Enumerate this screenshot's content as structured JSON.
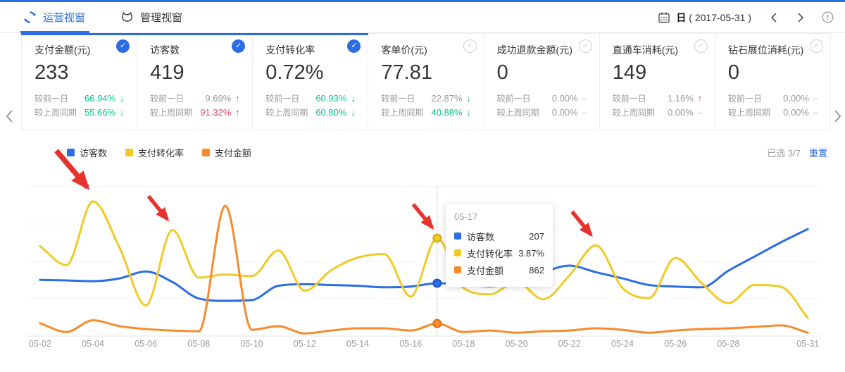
{
  "colors": {
    "accent": "#2b6de4",
    "green": "#0abf8f",
    "red": "#f0466e",
    "gray": "#9b9b9b",
    "arrow_red": "#e8322d"
  },
  "icons": {
    "check": "✓",
    "up": "↑",
    "down": "↓",
    "flat": "–"
  },
  "header": {
    "tabs": [
      {
        "label": "运营视窗"
      },
      {
        "label": "管理视窗"
      }
    ],
    "date_mode": "日",
    "date_range": "( 2017-05-31 )"
  },
  "cards": [
    {
      "title": "支付金额(元)",
      "value": "233",
      "selected": true,
      "rows": [
        {
          "label": "较前一日",
          "value": "66.94%",
          "dir": "down",
          "value_color": "green"
        },
        {
          "label": "较上周同期",
          "value": "55.66%",
          "dir": "down",
          "value_color": "green"
        }
      ]
    },
    {
      "title": "访客数",
      "value": "419",
      "selected": true,
      "rows": [
        {
          "label": "较前一日",
          "value": "9.69%",
          "dir": "up",
          "value_color": "gray"
        },
        {
          "label": "较上周同期",
          "value": "91.32%",
          "dir": "up",
          "value_color": "red"
        }
      ]
    },
    {
      "title": "支付转化率",
      "value": "0.72%",
      "selected": true,
      "rows": [
        {
          "label": "较前一日",
          "value": "60.93%",
          "dir": "down",
          "value_color": "green"
        },
        {
          "label": "较上周同期",
          "value": "60.80%",
          "dir": "down",
          "value_color": "green"
        }
      ]
    },
    {
      "title": "客单价(元)",
      "value": "77.81",
      "selected": false,
      "rows": [
        {
          "label": "较前一日",
          "value": "22.87%",
          "dir": "down",
          "value_color": "gray"
        },
        {
          "label": "较上周同期",
          "value": "40.88%",
          "dir": "down",
          "value_color": "green"
        }
      ]
    },
    {
      "title": "成功退款金额(元)",
      "value": "0",
      "selected": false,
      "rows": [
        {
          "label": "较前一日",
          "value": "0.00%",
          "dir": "flat",
          "value_color": "gray"
        },
        {
          "label": "较上周同期",
          "value": "0.00%",
          "dir": "flat",
          "value_color": "gray"
        }
      ]
    },
    {
      "title": "直通车消耗(元)",
      "value": "149",
      "selected": false,
      "rows": [
        {
          "label": "较前一日",
          "value": "1.16%",
          "dir": "up",
          "value_color": "gray"
        },
        {
          "label": "较上周同期",
          "value": "0.00%",
          "dir": "flat",
          "value_color": "gray"
        }
      ]
    },
    {
      "title": "钻石展位消耗(元)",
      "value": "0",
      "selected": false,
      "rows": [
        {
          "label": "较前一日",
          "value": "0.00%",
          "dir": "flat",
          "value_color": "gray"
        },
        {
          "label": "较上周同期",
          "value": "0.00%",
          "dir": "flat",
          "value_color": "gray"
        }
      ]
    }
  ],
  "legend": {
    "selected_text": "已选 3/7",
    "reset_label": "重置"
  },
  "chart_data": {
    "type": "line",
    "x": [
      "05-02",
      "05-03",
      "05-04",
      "05-05",
      "05-06",
      "05-07",
      "05-08",
      "05-09",
      "05-10",
      "05-11",
      "05-12",
      "05-13",
      "05-14",
      "05-15",
      "05-16",
      "05-17",
      "05-18",
      "05-19",
      "05-20",
      "05-21",
      "05-22",
      "05-23",
      "05-24",
      "05-25",
      "05-26",
      "05-27",
      "05-28",
      "05-29",
      "05-30",
      "05-31"
    ],
    "x_tick_labels": [
      "05-02",
      "05-04",
      "05-06",
      "05-08",
      "05-10",
      "05-12",
      "05-14",
      "05-16",
      "05-18",
      "05-20",
      "05-22",
      "05-24",
      "05-26",
      "05-28",
      "05-31"
    ],
    "grid": "horizontal-only",
    "y_axis_labels_visible": false,
    "legend_position": "top-left",
    "series": [
      {
        "id": "visitors",
        "name": "访客数",
        "color": "#2b6de4",
        "dot_stroke": "#1d57c8",
        "axis_max": 585,
        "values": [
          220,
          218,
          215,
          226,
          253,
          212,
          147,
          138,
          141,
          197,
          203,
          200,
          197,
          191,
          194,
          207,
          203,
          195,
          218,
          250,
          276,
          250,
          226,
          200,
          194,
          191,
          256,
          312,
          368,
          419
        ]
      },
      {
        "id": "conversion-rate",
        "name": "支付转化率",
        "color": "#f0ca25",
        "dot_stroke": "#d3ab10",
        "axis_max": 5.9,
        "unit": "%",
        "values": [
          3.55,
          2.8,
          5.32,
          3.5,
          1.21,
          4.19,
          2.31,
          2.43,
          2.37,
          3.38,
          1.79,
          2.6,
          3.1,
          3.24,
          1.56,
          3.87,
          1.9,
          1.65,
          2.14,
          1.45,
          2.4,
          3.58,
          1.9,
          1.5,
          3.09,
          2.08,
          1.3,
          2.02,
          1.94,
          0.72
        ]
      },
      {
        "id": "payment-amount",
        "name": "支付金额",
        "color": "#f78a2d",
        "dot_stroke": "#df7316",
        "axis_max": 10300,
        "values": [
          885,
          282,
          1086,
          684,
          483,
          382,
          332,
          8980,
          433,
          684,
          181,
          382,
          533,
          533,
          382,
          862,
          282,
          382,
          231,
          332,
          382,
          533,
          433,
          231,
          382,
          483,
          533,
          634,
          734,
          233
        ]
      }
    ],
    "highlight_index": 15,
    "tooltip": {
      "title": "05-17",
      "rows": [
        {
          "label": "访客数",
          "value": "207"
        },
        {
          "label": "支付转化率",
          "value": "3.87%"
        },
        {
          "label": "支付金额",
          "value": "862"
        }
      ]
    },
    "annotations": [
      {
        "type": "red-arrow",
        "target": "05-04"
      },
      {
        "type": "red-arrow",
        "target": "05-07"
      },
      {
        "type": "red-arrow",
        "target": "05-17"
      },
      {
        "type": "red-arrow",
        "target": "05-23"
      }
    ]
  }
}
